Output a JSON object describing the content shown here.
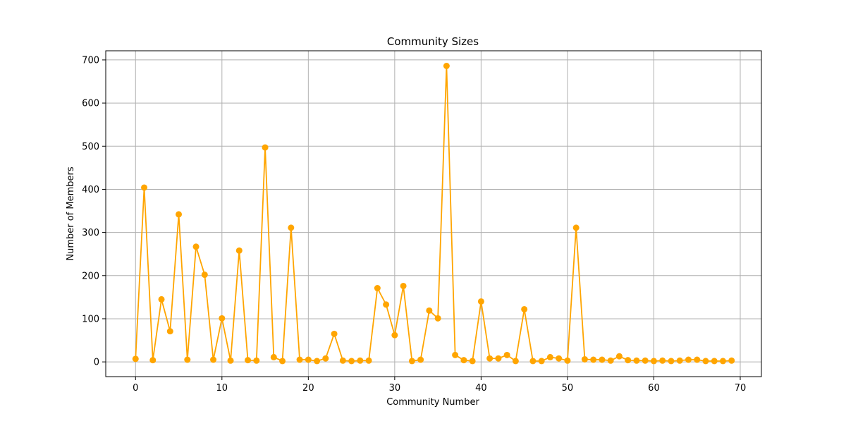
{
  "chart_data": {
    "type": "line",
    "title": "Community Sizes",
    "xlabel": "Community Number",
    "ylabel": "Number of Members",
    "xlim": [
      -3.45,
      72.45
    ],
    "ylim": [
      -34.15,
      721.15
    ],
    "xticks": [
      0,
      10,
      20,
      30,
      40,
      50,
      60,
      70
    ],
    "yticks": [
      0,
      100,
      200,
      300,
      400,
      500,
      600,
      700
    ],
    "grid": true,
    "legend": "none",
    "series": [
      {
        "color": "#FFA500",
        "marker": "circle",
        "x": [
          0,
          1,
          2,
          3,
          4,
          5,
          6,
          7,
          8,
          9,
          10,
          11,
          12,
          13,
          14,
          15,
          16,
          17,
          18,
          19,
          20,
          21,
          22,
          23,
          24,
          25,
          26,
          27,
          28,
          29,
          30,
          31,
          32,
          33,
          34,
          35,
          36,
          37,
          38,
          39,
          40,
          41,
          42,
          43,
          44,
          45,
          46,
          47,
          48,
          49,
          50,
          51,
          52,
          53,
          54,
          55,
          56,
          57,
          58,
          59,
          60,
          61,
          62,
          63,
          64,
          65,
          66,
          67,
          68,
          69
        ],
        "y": [
          7,
          404,
          4,
          145,
          71,
          342,
          5,
          267,
          202,
          5,
          101,
          3,
          258,
          4,
          3,
          497,
          11,
          2,
          311,
          5,
          5,
          2,
          8,
          65,
          3,
          2,
          3,
          3,
          171,
          133,
          62,
          176,
          2,
          5,
          119,
          101,
          686,
          16,
          4,
          2,
          140,
          8,
          8,
          16,
          2,
          122,
          2,
          2,
          11,
          8,
          3,
          311,
          6,
          5,
          5,
          3,
          13,
          4,
          3,
          3,
          2,
          3,
          2,
          3,
          5,
          5,
          2,
          2,
          2,
          3
        ]
      }
    ]
  }
}
